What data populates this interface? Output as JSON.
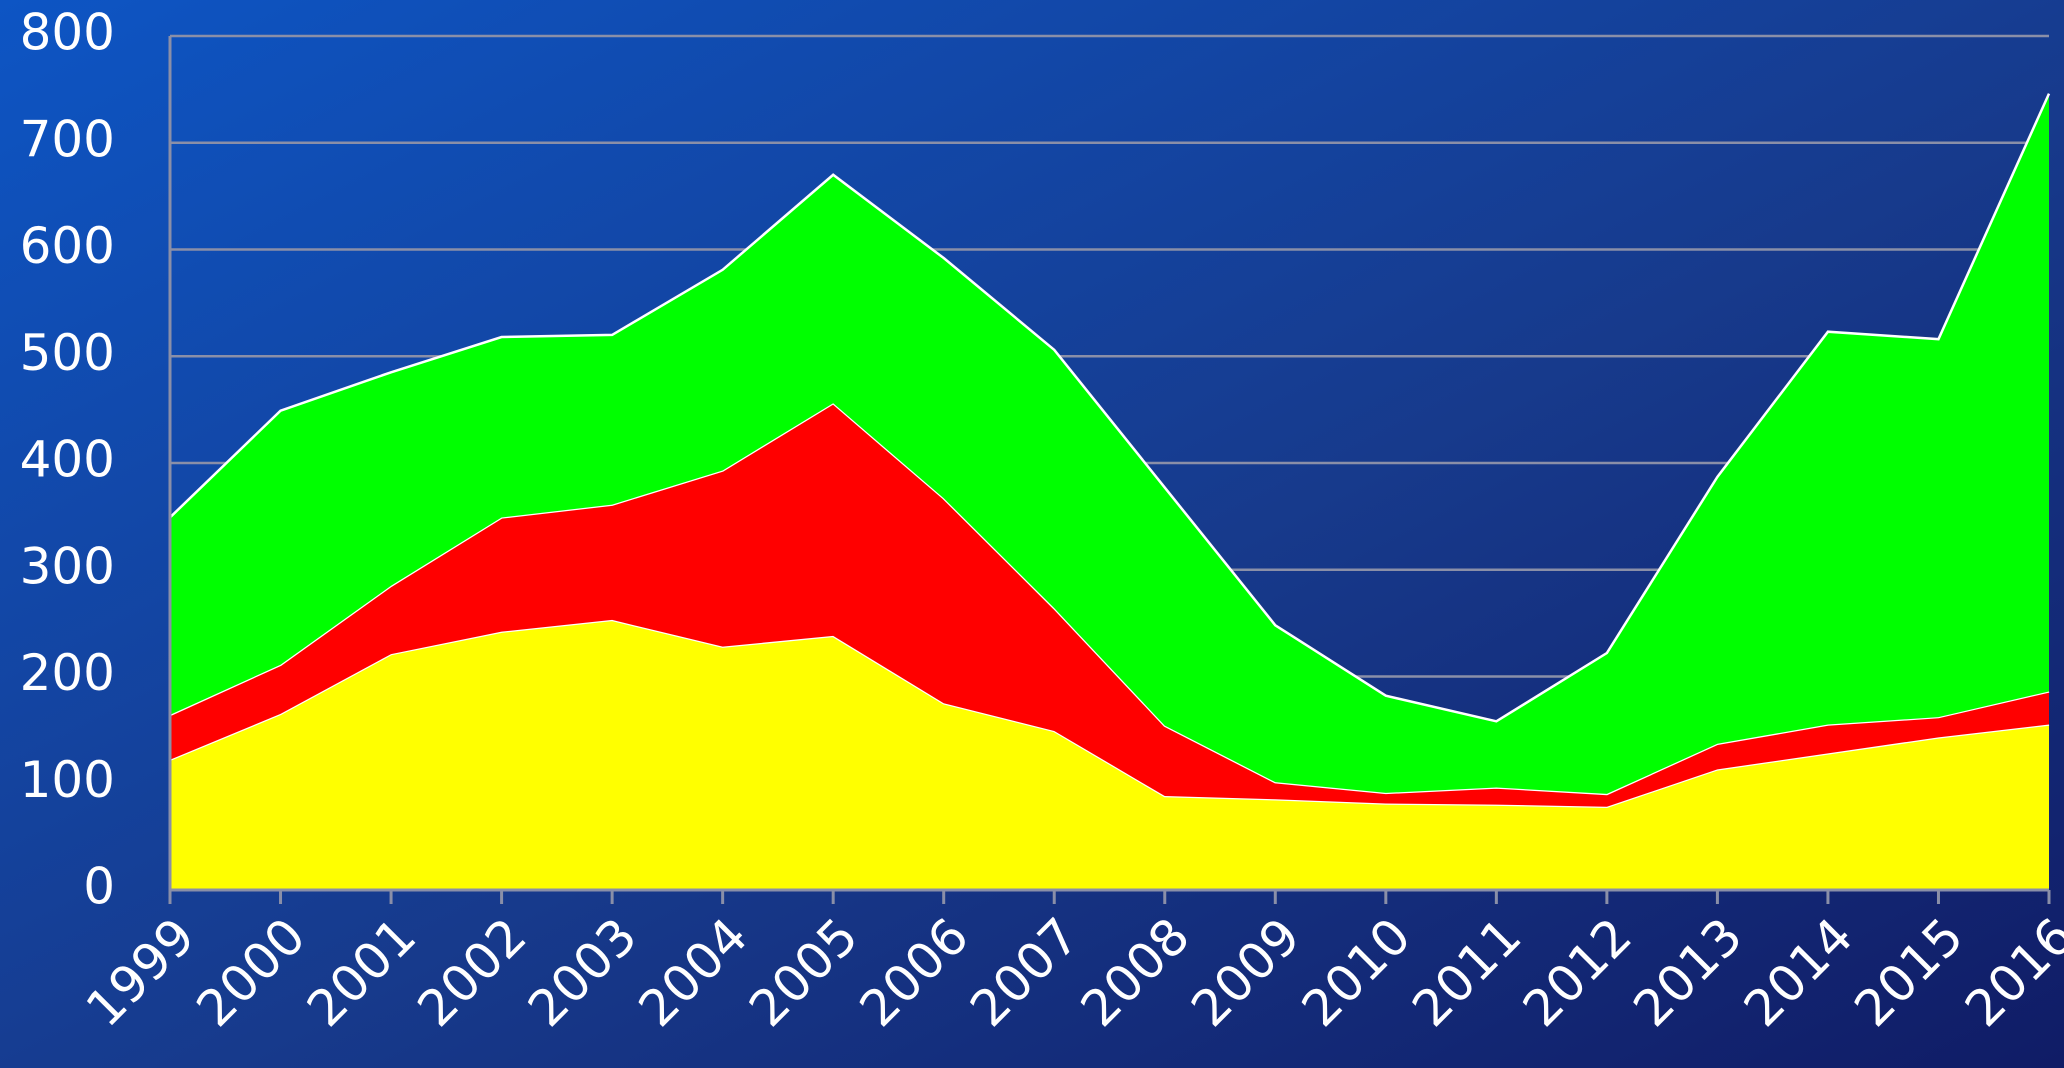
{
  "chart_data": {
    "type": "stacked_area",
    "categories": [
      "1999",
      "2000",
      "2001",
      "2002",
      "2003",
      "2004",
      "2005",
      "2006",
      "2007",
      "2008",
      "2009",
      "2010",
      "2011",
      "2012",
      "2013",
      "2014",
      "2015",
      "2016"
    ],
    "series": [
      {
        "color": "#ffff00",
        "values": [
          122,
          165,
          221,
          242,
          253,
          228,
          238,
          175,
          149,
          88,
          85,
          81,
          80,
          78,
          113,
          128,
          143,
          155
        ]
      },
      {
        "color": "#ff0000",
        "values": [
          42,
          46,
          64,
          107,
          108,
          165,
          218,
          192,
          115,
          66,
          16,
          10,
          16,
          12,
          24,
          27,
          19,
          31
        ]
      },
      {
        "color": "#00ff00",
        "values": [
          185,
          238,
          200,
          169,
          159,
          188,
          214,
          225,
          242,
          223,
          147,
          91,
          62,
          132,
          250,
          368,
          354,
          560
        ]
      }
    ],
    "ylim": [
      0,
      800
    ],
    "yticks": [
      0,
      100,
      200,
      300,
      400,
      500,
      600,
      700,
      800
    ],
    "grid": true
  }
}
